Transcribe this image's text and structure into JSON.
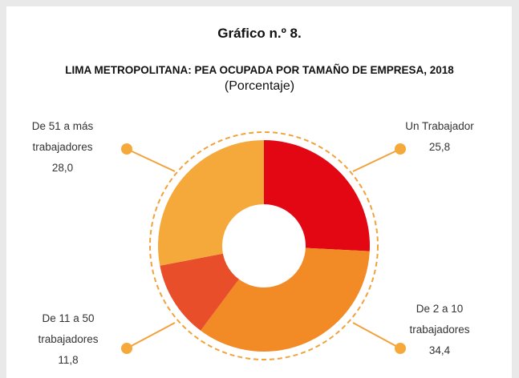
{
  "chart_data": {
    "type": "pie",
    "title": "Gráfico n.º 8.",
    "subtitle": "LIMA METROPOLITANA: PEA OCUPADA POR TAMAÑO DE EMPRESA, 2018",
    "unit_label": "(Porcentaje)",
    "categories": [
      "Un Trabajador",
      "De 2 a 10 trabajadores",
      "De 11 a 50 trabajadores",
      "De 51 a más trabajadores"
    ],
    "values": [
      25.8,
      34.4,
      11.8,
      28.0
    ],
    "value_labels": [
      "25,8",
      "34,4",
      "11,8",
      "28,0"
    ],
    "colors": [
      "#e30613",
      "#f28a25",
      "#e84e2a",
      "#f6a93b"
    ],
    "donut": true
  }
}
